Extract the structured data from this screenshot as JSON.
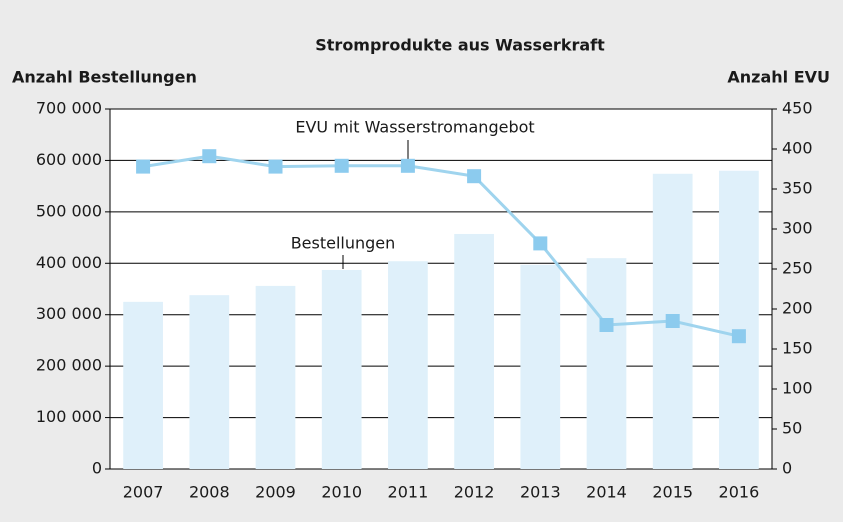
{
  "chart_data": {
    "type": "bar-line",
    "title": "Stromprodukte aus Wasserkraft",
    "ylabel": "Anzahl Bestellungen",
    "y2label": "Anzahl EVU",
    "categories": [
      "2007",
      "2008",
      "2009",
      "2010",
      "2011",
      "2012",
      "2013",
      "2014",
      "2015",
      "2016"
    ],
    "series": [
      {
        "name": "Bestellungen",
        "type": "bar",
        "color": "#dff0fa",
        "values": [
          325000,
          338000,
          356000,
          387000,
          404000,
          457000,
          397000,
          410000,
          574000,
          580000
        ]
      },
      {
        "name": "EVU mit Wasserstromangebot",
        "type": "line",
        "axis": "y2",
        "color": "#9fd4ee",
        "marker_color": "#8ccbee",
        "values": [
          378,
          391,
          378,
          379,
          379,
          366,
          282,
          180,
          185,
          166
        ]
      }
    ],
    "ylim": [
      0,
      700000
    ],
    "yticks": [
      0,
      {
        "value": 100000,
        "label": "100 000"
      },
      {
        "value": 200000,
        "label": "200 000"
      },
      {
        "value": 300000,
        "label": "300 000"
      },
      {
        "value": 400000,
        "label": "400 000"
      },
      {
        "value": 500000,
        "label": "500 000"
      },
      {
        "value": 600000,
        "label": "600 000"
      },
      {
        "value": 700000,
        "label": "700 000"
      }
    ],
    "y2lim": [
      0,
      450
    ],
    "y2ticks": [
      0,
      50,
      100,
      150,
      200,
      250,
      300,
      350,
      400,
      450
    ],
    "grid": true
  }
}
